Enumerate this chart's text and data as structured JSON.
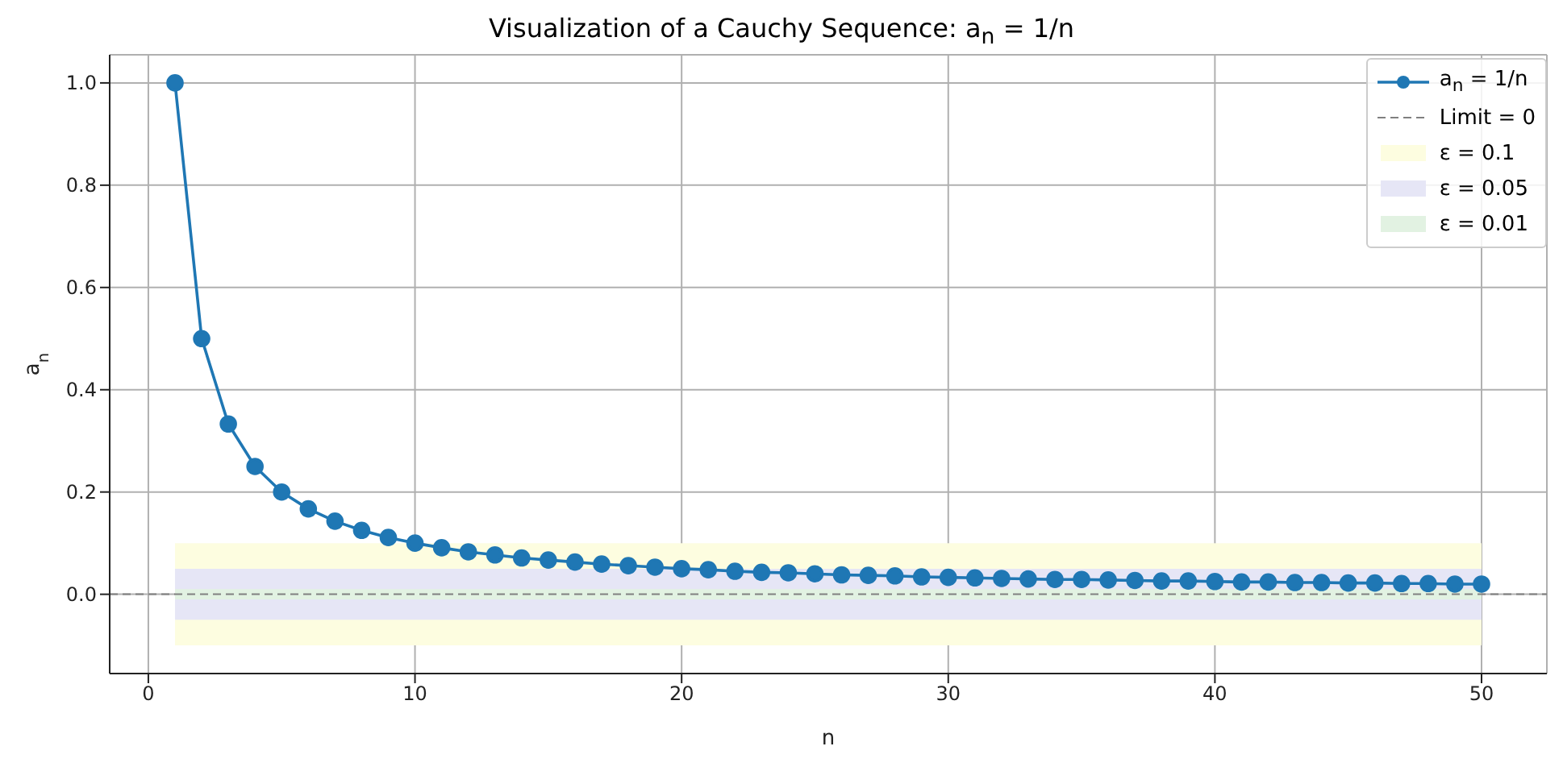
{
  "chart_data": {
    "type": "line",
    "title": "Visualization of a Cauchy Sequence: a$_{n}$ = 1/n",
    "xlabel": "n",
    "ylabel": "a$_{n}$",
    "x": [
      1,
      2,
      3,
      4,
      5,
      6,
      7,
      8,
      9,
      10,
      11,
      12,
      13,
      14,
      15,
      16,
      17,
      18,
      19,
      20,
      21,
      22,
      23,
      24,
      25,
      26,
      27,
      28,
      29,
      30,
      31,
      32,
      33,
      34,
      35,
      36,
      37,
      38,
      39,
      40,
      41,
      42,
      43,
      44,
      45,
      46,
      47,
      48,
      49,
      50
    ],
    "series": [
      {
        "name": "a$_{n}$ = 1/n",
        "color": "#1f77b4",
        "values": [
          1,
          0.5,
          0.333,
          0.25,
          0.2,
          0.167,
          0.143,
          0.125,
          0.111,
          0.1,
          0.091,
          0.083,
          0.077,
          0.071,
          0.067,
          0.063,
          0.059,
          0.056,
          0.053,
          0.05,
          0.048,
          0.045,
          0.043,
          0.042,
          0.04,
          0.038,
          0.037,
          0.036,
          0.034,
          0.033,
          0.032,
          0.031,
          0.03,
          0.029,
          0.029,
          0.028,
          0.027,
          0.026,
          0.026,
          0.025,
          0.024,
          0.024,
          0.023,
          0.023,
          0.022,
          0.022,
          0.021,
          0.021,
          0.02,
          0.02
        ]
      }
    ],
    "ref_lines": [
      {
        "axis": "y",
        "value": 0,
        "label": "Limit = 0",
        "color": "#808080",
        "line_style": "dashed"
      }
    ],
    "bands": [
      {
        "axis": "y",
        "from": -0.1,
        "to": 0.1,
        "label": "ε = 0.1",
        "color": "#fdfde0"
      },
      {
        "axis": "y",
        "from": -0.05,
        "to": 0.05,
        "label": "ε = 0.05",
        "color": "#e6e6f6"
      },
      {
        "axis": "y",
        "from": -0.01,
        "to": 0.01,
        "label": "ε = 0.01",
        "color": "#e2f2e2"
      }
    ],
    "xlim": [
      -1.45,
      52.45
    ],
    "xticks": [
      0,
      10,
      20,
      30,
      40,
      50
    ],
    "ylim": [
      -0.155,
      1.055
    ],
    "yticks": [
      {
        "value": 0,
        "label": "0.0"
      },
      {
        "value": 0.2,
        "label": "0.2"
      },
      {
        "value": 0.4,
        "label": "0.4"
      },
      {
        "value": 0.6,
        "label": "0.6"
      },
      {
        "value": 0.8,
        "label": "0.8"
      },
      {
        "value": 1,
        "label": "1.0"
      }
    ],
    "grid": true,
    "legend": "top right",
    "marker": "circle",
    "line_style": "solid"
  }
}
